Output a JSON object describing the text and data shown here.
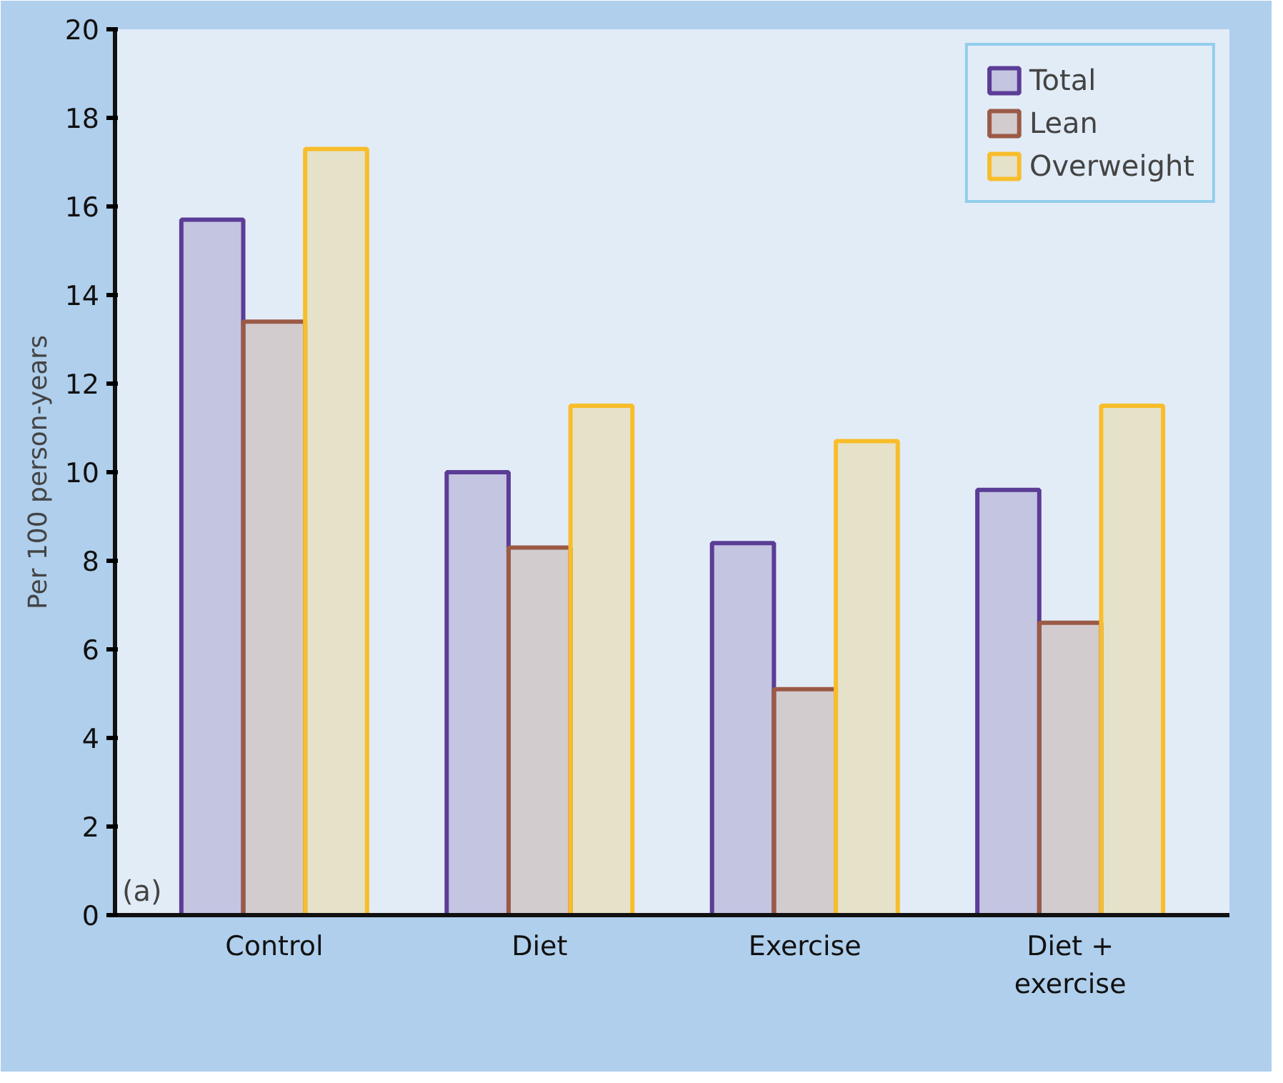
{
  "chart_data": {
    "type": "bar",
    "ylabel": "Per 100 person-years",
    "categories": [
      "Control",
      "Diet",
      "Exercise",
      "Diet + exercise"
    ],
    "series": [
      {
        "name": "Total",
        "color": "#5b3c96",
        "values": [
          15.7,
          10.0,
          8.4,
          9.6
        ]
      },
      {
        "name": "Lean",
        "color": "#9b5a45",
        "values": [
          13.4,
          8.3,
          5.1,
          6.6
        ]
      },
      {
        "name": "Overweight",
        "color": "#f8bd2a",
        "values": [
          17.3,
          11.5,
          10.7,
          11.5
        ]
      }
    ],
    "ylim": [
      0,
      20
    ],
    "yticks": [
      0,
      2,
      4,
      6,
      8,
      10,
      12,
      14,
      16,
      18,
      20
    ],
    "grid": false,
    "legend": "top right",
    "annotations": [
      "(a)"
    ]
  }
}
